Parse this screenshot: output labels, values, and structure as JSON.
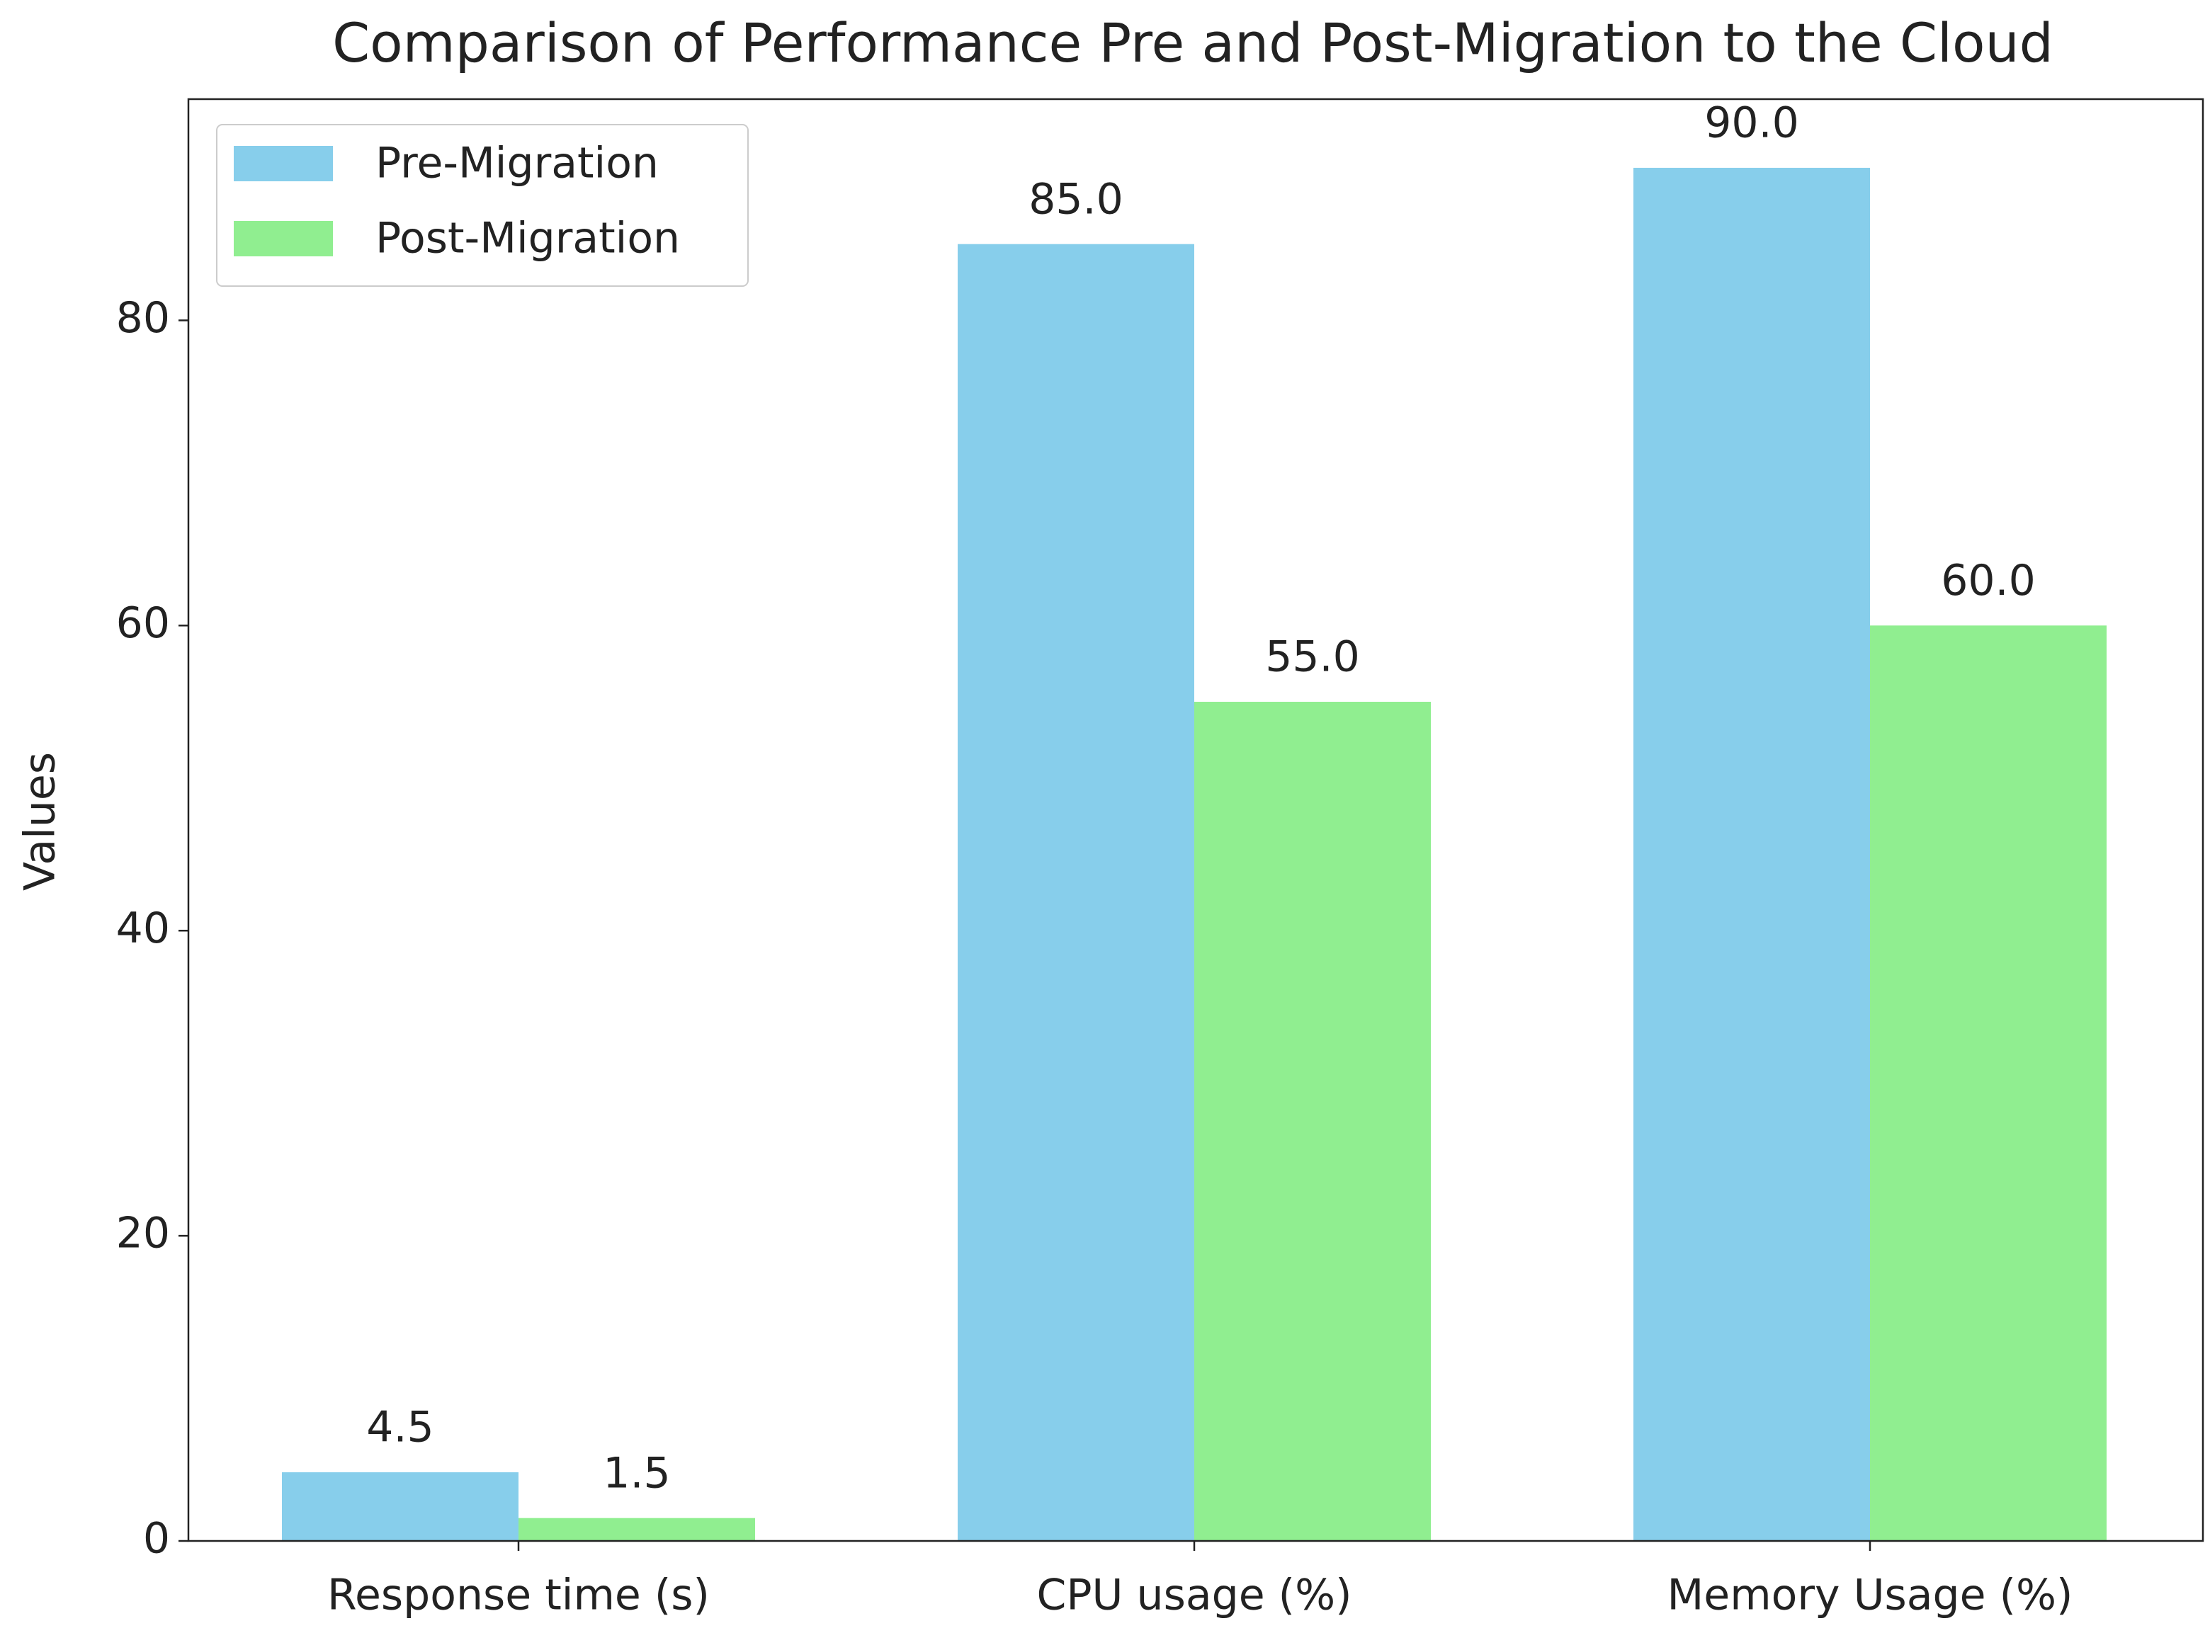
{
  "chart_data": {
    "type": "bar",
    "title": "Comparison of Performance Pre and Post-Migration to the Cloud",
    "ylabel": "Values",
    "categories": [
      "Response time (s)",
      "CPU usage (%)",
      "Memory Usage (%)"
    ],
    "series": [
      {
        "name": "Pre-Migration",
        "color": "#87ceeb",
        "values": [
          4.5,
          85,
          90
        ],
        "value_labels": [
          "4.5",
          "85.0",
          "90.0"
        ]
      },
      {
        "name": "Post-Migration",
        "color": "#90ee90",
        "values": [
          1.5,
          55,
          60
        ],
        "value_labels": [
          "1.5",
          "55.0",
          "60.0"
        ]
      }
    ],
    "ylim": [
      0,
      94.5
    ],
    "yticks": [
      0,
      20,
      40,
      60,
      80
    ],
    "legend": "upper left"
  }
}
